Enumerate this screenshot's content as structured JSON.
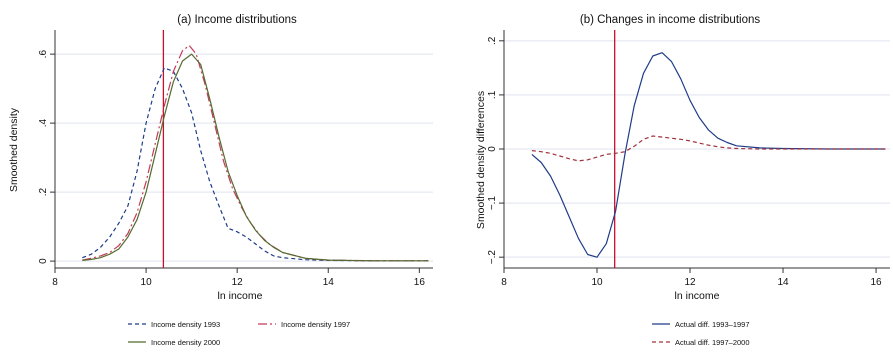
{
  "chart_data": [
    {
      "type": "line",
      "title": "(a) Income distributions",
      "xlabel": "ln income",
      "ylabel": "Smoothed density",
      "xlim": [
        8,
        16.3
      ],
      "ylim": [
        -0.02,
        0.67
      ],
      "xticks": [
        8,
        10,
        12,
        14,
        16
      ],
      "xtick_labels": [
        "8",
        "10",
        "12",
        "14",
        "16"
      ],
      "yticks": [
        0,
        0.2,
        0.4,
        0.6
      ],
      "ytick_labels": [
        "0",
        ".2",
        ".4",
        ".6"
      ],
      "grid": "horizontal",
      "vline": {
        "x": 10.38,
        "color": "#c8102e"
      },
      "legend": {
        "position": "bottom",
        "columns": 2
      },
      "series": [
        {
          "name": "Income density 1993",
          "color": "#1f3c88",
          "dash": "4,3",
          "x": [
            8.6,
            8.8,
            9.0,
            9.2,
            9.4,
            9.6,
            9.8,
            10.0,
            10.2,
            10.4,
            10.6,
            10.8,
            11.0,
            11.2,
            11.4,
            11.6,
            11.8,
            12.0,
            12.2,
            12.4,
            12.6,
            12.8,
            13.0,
            13.5,
            14.0,
            15.0,
            16.2
          ],
          "y": [
            0.01,
            0.02,
            0.04,
            0.07,
            0.11,
            0.16,
            0.26,
            0.4,
            0.5,
            0.56,
            0.55,
            0.5,
            0.43,
            0.32,
            0.23,
            0.16,
            0.095,
            0.085,
            0.07,
            0.05,
            0.03,
            0.015,
            0.01,
            0.004,
            0.002,
            0.001,
            0.001
          ]
        },
        {
          "name": "Income density 1997",
          "color": "#c23b5a",
          "dash": "9,3,2,3",
          "x": [
            8.6,
            8.8,
            9.0,
            9.2,
            9.4,
            9.6,
            9.8,
            10.0,
            10.2,
            10.4,
            10.6,
            10.8,
            10.95,
            11.1,
            11.3,
            11.5,
            11.7,
            11.9,
            12.1,
            12.3,
            12.5,
            12.7,
            13.0,
            13.5,
            14.0,
            15.0,
            16.2
          ],
          "y": [
            0.003,
            0.008,
            0.015,
            0.025,
            0.045,
            0.08,
            0.14,
            0.23,
            0.34,
            0.45,
            0.55,
            0.61,
            0.625,
            0.6,
            0.51,
            0.4,
            0.29,
            0.21,
            0.155,
            0.11,
            0.075,
            0.05,
            0.025,
            0.008,
            0.003,
            0.001,
            0.001
          ]
        },
        {
          "name": "Income density 2000",
          "color": "#556b2f",
          "dash": "",
          "x": [
            8.6,
            8.8,
            9.0,
            9.2,
            9.4,
            9.6,
            9.8,
            10.0,
            10.2,
            10.4,
            10.6,
            10.8,
            11.0,
            11.2,
            11.4,
            11.6,
            11.8,
            12.0,
            12.2,
            12.4,
            12.6,
            12.8,
            13.0,
            13.5,
            14.0,
            15.0,
            16.2
          ],
          "y": [
            0.002,
            0.005,
            0.01,
            0.02,
            0.035,
            0.07,
            0.12,
            0.2,
            0.31,
            0.42,
            0.52,
            0.58,
            0.6,
            0.57,
            0.47,
            0.36,
            0.26,
            0.19,
            0.13,
            0.09,
            0.06,
            0.04,
            0.025,
            0.008,
            0.003,
            0.001,
            0.001
          ]
        }
      ]
    },
    {
      "type": "line",
      "title": "(b) Changes in income distributions",
      "xlabel": "ln income",
      "ylabel": "Smoothed density differences",
      "xlim": [
        8,
        16.3
      ],
      "ylim": [
        -0.22,
        0.22
      ],
      "xticks": [
        8,
        10,
        12,
        14,
        16
      ],
      "xtick_labels": [
        "8",
        "10",
        "12",
        "14",
        "16"
      ],
      "yticks": [
        -0.2,
        -0.1,
        0,
        0.1,
        0.2
      ],
      "ytick_labels": [
        "−.2",
        "−.1",
        "0",
        ".1",
        ".2"
      ],
      "grid": "horizontal",
      "vline": {
        "x": 10.38,
        "color": "#c8102e"
      },
      "legend": {
        "position": "bottom",
        "columns": 1
      },
      "series": [
        {
          "name": "Actual diff. 1993–1997",
          "color": "#1f3c88",
          "dash": "",
          "x": [
            8.6,
            8.8,
            9.0,
            9.2,
            9.4,
            9.6,
            9.8,
            10.0,
            10.2,
            10.4,
            10.6,
            10.8,
            11.0,
            11.2,
            11.4,
            11.6,
            11.8,
            12.0,
            12.2,
            12.4,
            12.6,
            12.8,
            13.0,
            13.5,
            14.0,
            15.0,
            16.2
          ],
          "y": [
            -0.01,
            -0.025,
            -0.05,
            -0.085,
            -0.125,
            -0.165,
            -0.195,
            -0.2,
            -0.175,
            -0.115,
            -0.01,
            0.08,
            0.14,
            0.172,
            0.178,
            0.162,
            0.13,
            0.09,
            0.058,
            0.035,
            0.02,
            0.012,
            0.006,
            0.002,
            0.001,
            0.0,
            0.0
          ]
        },
        {
          "name": "Actual diff. 1997–2000",
          "color": "#a0303a",
          "dash": "4,3",
          "x": [
            8.6,
            8.8,
            9.0,
            9.2,
            9.4,
            9.6,
            9.8,
            10.0,
            10.2,
            10.4,
            10.6,
            10.8,
            11.0,
            11.2,
            11.4,
            11.6,
            11.8,
            12.0,
            12.2,
            12.4,
            12.6,
            12.8,
            13.0,
            13.5,
            14.0,
            15.0,
            16.2
          ],
          "y": [
            -0.003,
            -0.005,
            -0.008,
            -0.013,
            -0.018,
            -0.022,
            -0.02,
            -0.015,
            -0.01,
            -0.008,
            -0.005,
            0.005,
            0.018,
            0.024,
            0.022,
            0.02,
            0.018,
            0.015,
            0.011,
            0.007,
            0.004,
            0.002,
            0.001,
            0.0,
            0.0,
            0.0,
            0.0
          ]
        }
      ]
    }
  ]
}
